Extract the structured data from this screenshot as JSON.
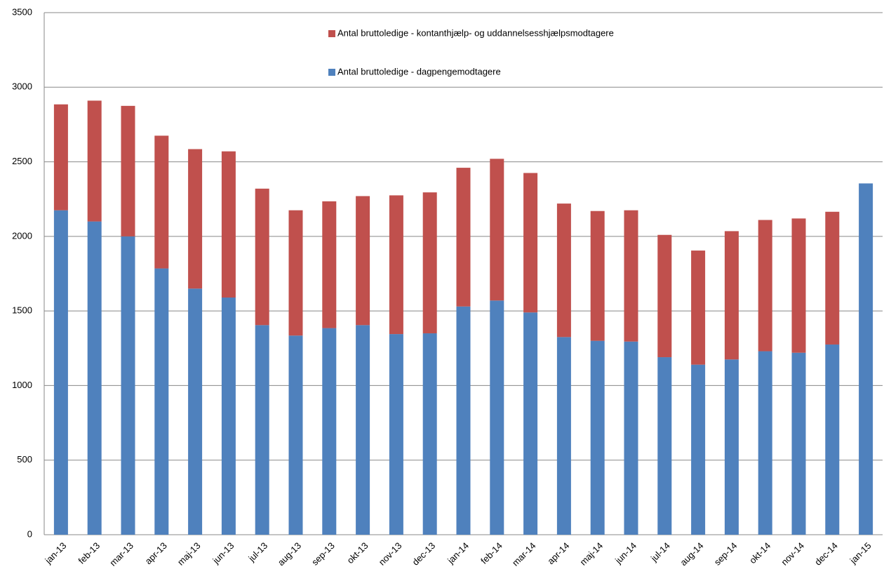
{
  "chart_data": {
    "type": "stacked_bar",
    "categories": [
      "jan-13",
      "feb-13",
      "mar-13",
      "apr-13",
      "maj-13",
      "jun-13",
      "jul-13",
      "aug-13",
      "sep-13",
      "okt-13",
      "nov-13",
      "dec-13",
      "jan-14",
      "feb-14",
      "mar-14",
      "apr-14",
      "maj-14",
      "jun-14",
      "jul-14",
      "aug-14",
      "sep-14",
      "okt-14",
      "nov-14",
      "dec-14",
      "jan-15"
    ],
    "series": [
      {
        "name": "Antal bruttoledige - dagpengemodtagere",
        "color": "#4f81bd",
        "values": [
          2175,
          2100,
          2000,
          1785,
          1650,
          1590,
          1405,
          1335,
          1385,
          1405,
          1345,
          1350,
          1530,
          1570,
          1490,
          1325,
          1300,
          1295,
          1190,
          1140,
          1175,
          1230,
          1220,
          1275,
          2355
        ]
      },
      {
        "name": "Antal bruttoledige - kontanthjælp-  og uddannelsesshjælpsmodtagere",
        "color": "#c0504d",
        "values": [
          710,
          810,
          875,
          890,
          935,
          980,
          915,
          840,
          850,
          865,
          930,
          945,
          930,
          950,
          935,
          895,
          870,
          880,
          820,
          765,
          860,
          880,
          900,
          890,
          null
        ]
      }
    ],
    "ylim": [
      0,
      3500
    ],
    "yticks": [
      0,
      500,
      1000,
      1500,
      2000,
      2500,
      3000,
      3500
    ],
    "grid": true,
    "legend": "top"
  }
}
